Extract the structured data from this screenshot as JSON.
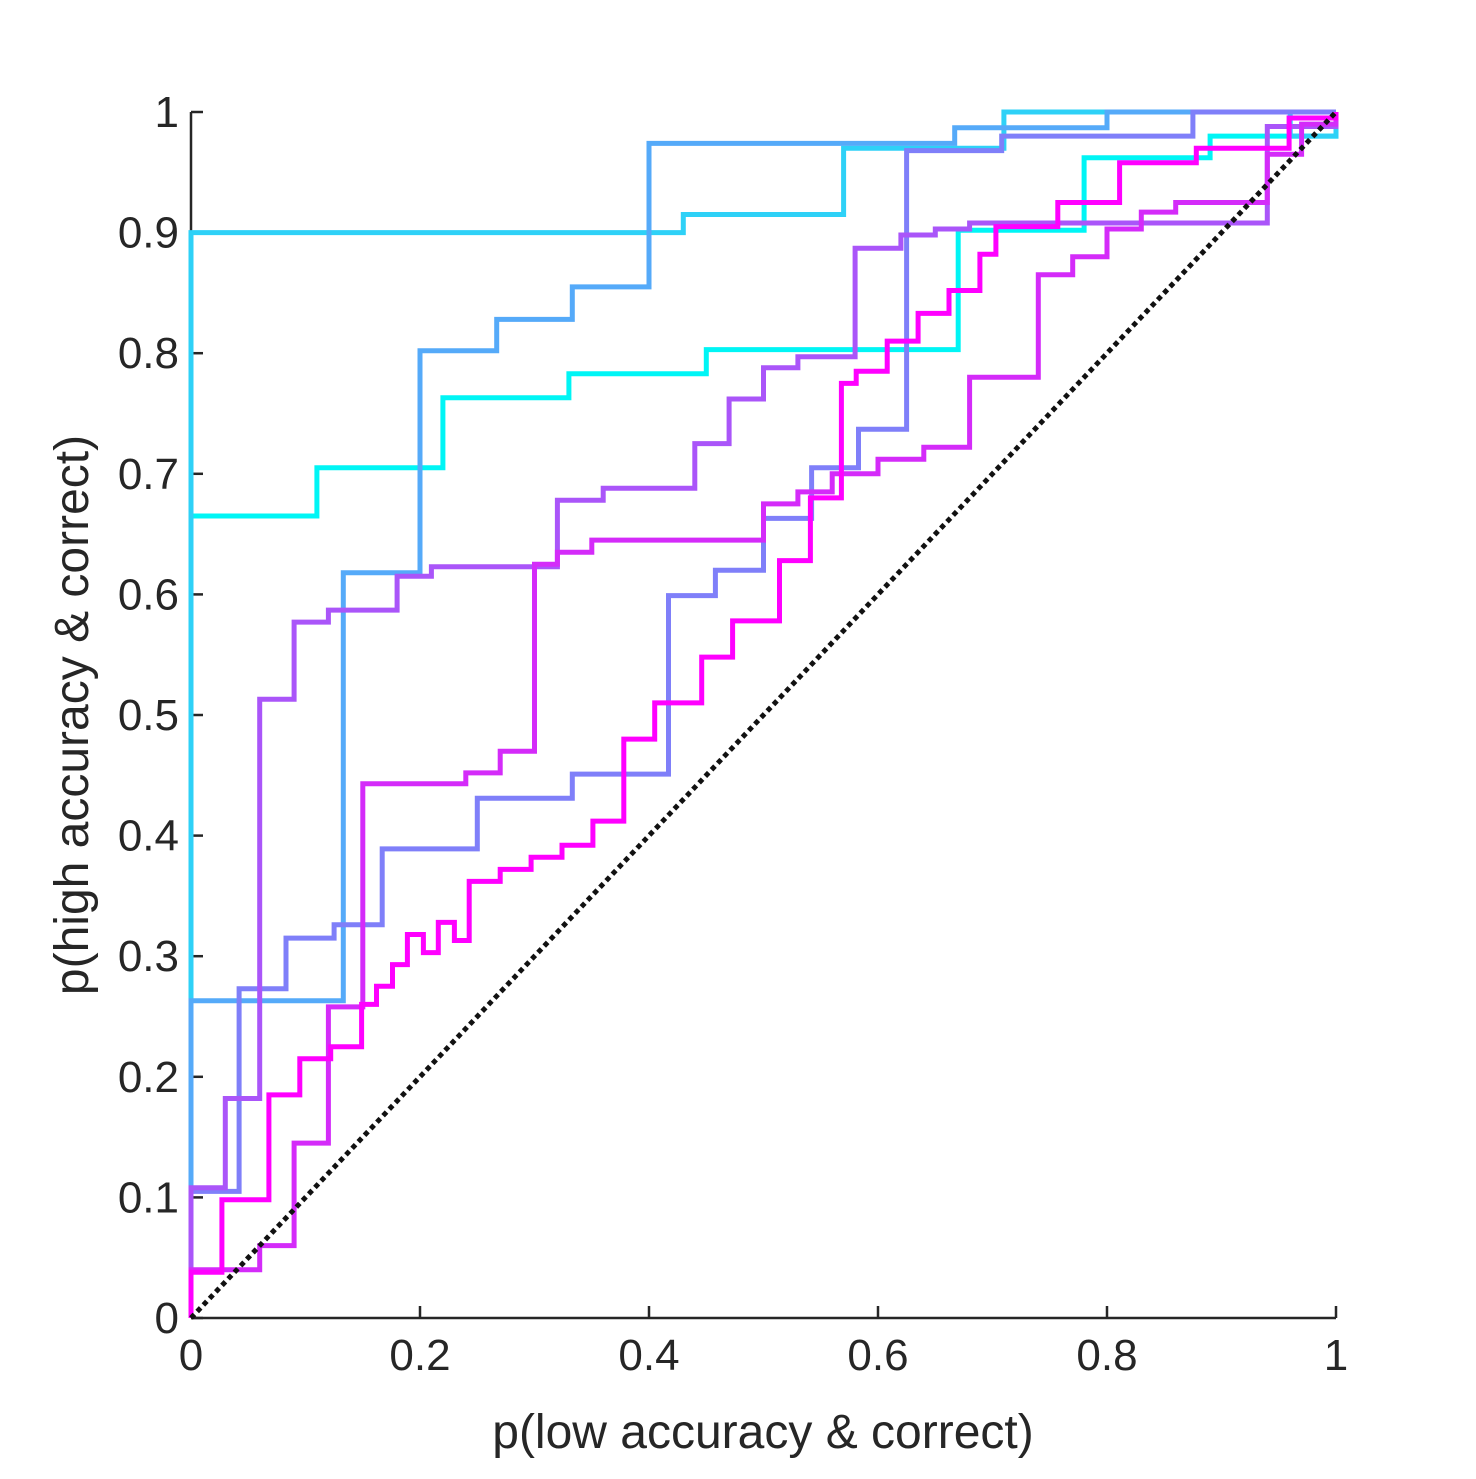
{
  "chart_data": {
    "type": "line",
    "title": "",
    "xlabel": "p(low accuracy & correct)",
    "ylabel": "p(high accuracy & correct)",
    "xlim": [
      0,
      1
    ],
    "ylim": [
      0,
      1
    ],
    "xticks": [
      "0",
      "0.2",
      "0.4",
      "0.6",
      "0.8",
      "1"
    ],
    "yticks": [
      "0",
      "0.1",
      "0.2",
      "0.3",
      "0.4",
      "0.5",
      "0.6",
      "0.7",
      "0.8",
      "0.9",
      "1"
    ],
    "grid": false,
    "legend": "none",
    "reference_line": {
      "style": "dotted",
      "color": "#111111",
      "x": [
        0,
        1
      ],
      "y": [
        0,
        1
      ]
    },
    "series": [
      {
        "color": "#00F5F5",
        "x": [
          0,
          0,
          0.11,
          0.11,
          0.22,
          0.22,
          0.33,
          0.33,
          0.45,
          0.45,
          0.67,
          0.67,
          0.78,
          0.78,
          0.89,
          0.89,
          1,
          1
        ],
        "y": [
          0,
          0.665,
          0.665,
          0.705,
          0.705,
          0.763,
          0.763,
          0.783,
          0.783,
          0.803,
          0.803,
          0.902,
          0.902,
          0.962,
          0.962,
          0.98,
          0.98,
          1
        ]
      },
      {
        "color": "#2ED1F7",
        "x": [
          0,
          0,
          0.43,
          0.43,
          0.57,
          0.57,
          0.71,
          0.71,
          0.96,
          0.96,
          1,
          1
        ],
        "y": [
          0,
          0.9,
          0.9,
          0.915,
          0.915,
          0.97,
          0.97,
          1,
          1,
          0.98,
          0.98,
          1
        ]
      },
      {
        "color": "#55AAF9",
        "x": [
          0,
          0,
          0.133,
          0.133,
          0.2,
          0.2,
          0.267,
          0.267,
          0.333,
          0.333,
          0.4,
          0.4,
          0.667,
          0.667,
          0.8,
          0.8,
          1,
          1
        ],
        "y": [
          0,
          0.263,
          0.263,
          0.618,
          0.618,
          0.802,
          0.802,
          0.828,
          0.828,
          0.855,
          0.855,
          0.974,
          0.974,
          0.987,
          0.987,
          1,
          1,
          1
        ]
      },
      {
        "color": "#7F7FF9",
        "x": [
          0,
          0,
          0.042,
          0.042,
          0.083,
          0.083,
          0.125,
          0.125,
          0.167,
          0.167,
          0.25,
          0.25,
          0.333,
          0.333,
          0.417,
          0.417,
          0.458,
          0.458,
          0.5,
          0.5,
          0.542,
          0.542,
          0.583,
          0.583,
          0.625,
          0.625,
          0.708,
          0.708,
          0.875,
          0.875,
          1,
          1
        ],
        "y": [
          0,
          0.105,
          0.105,
          0.273,
          0.273,
          0.315,
          0.315,
          0.326,
          0.326,
          0.389,
          0.389,
          0.431,
          0.431,
          0.451,
          0.451,
          0.599,
          0.599,
          0.62,
          0.62,
          0.663,
          0.663,
          0.705,
          0.705,
          0.737,
          0.737,
          0.968,
          0.968,
          0.98,
          0.98,
          1,
          1,
          1
        ]
      },
      {
        "color": "#AA55F9",
        "x": [
          0,
          0,
          0.03,
          0.03,
          0.06,
          0.06,
          0.09,
          0.09,
          0.12,
          0.12,
          0.18,
          0.18,
          0.21,
          0.21,
          0.32,
          0.32,
          0.36,
          0.36,
          0.44,
          0.44,
          0.47,
          0.47,
          0.5,
          0.5,
          0.53,
          0.53,
          0.58,
          0.58,
          0.62,
          0.62,
          0.65,
          0.65,
          0.68,
          0.68,
          0.94,
          0.94,
          1,
          1
        ],
        "y": [
          0,
          0.108,
          0.108,
          0.182,
          0.182,
          0.513,
          0.513,
          0.577,
          0.577,
          0.587,
          0.587,
          0.615,
          0.615,
          0.623,
          0.623,
          0.678,
          0.678,
          0.688,
          0.688,
          0.725,
          0.725,
          0.762,
          0.762,
          0.788,
          0.788,
          0.797,
          0.797,
          0.887,
          0.887,
          0.898,
          0.898,
          0.903,
          0.903,
          0.908,
          0.908,
          0.988,
          0.988,
          1
        ]
      },
      {
        "color": "#D42BF9",
        "x": [
          0,
          0,
          0.06,
          0.06,
          0.09,
          0.09,
          0.12,
          0.12,
          0.15,
          0.15,
          0.24,
          0.24,
          0.27,
          0.27,
          0.3,
          0.3,
          0.32,
          0.32,
          0.35,
          0.35,
          0.5,
          0.5,
          0.53,
          0.53,
          0.56,
          0.56,
          0.6,
          0.6,
          0.64,
          0.64,
          0.68,
          0.68,
          0.74,
          0.74,
          0.77,
          0.77,
          0.8,
          0.8,
          0.83,
          0.83,
          0.86,
          0.86,
          0.94,
          0.94,
          0.97,
          0.97,
          1,
          1
        ],
        "y": [
          0,
          0.04,
          0.04,
          0.06,
          0.06,
          0.145,
          0.145,
          0.258,
          0.258,
          0.443,
          0.443,
          0.452,
          0.452,
          0.47,
          0.47,
          0.625,
          0.625,
          0.635,
          0.635,
          0.645,
          0.645,
          0.675,
          0.675,
          0.685,
          0.685,
          0.7,
          0.7,
          0.712,
          0.712,
          0.722,
          0.722,
          0.78,
          0.78,
          0.865,
          0.865,
          0.88,
          0.88,
          0.903,
          0.903,
          0.917,
          0.917,
          0.925,
          0.925,
          0.965,
          0.965,
          0.99,
          0.99,
          1
        ]
      },
      {
        "color": "#FF00FF",
        "x": [
          0,
          0,
          0.027,
          0.027,
          0.068,
          0.068,
          0.095,
          0.095,
          0.122,
          0.122,
          0.149,
          0.149,
          0.162,
          0.162,
          0.176,
          0.176,
          0.189,
          0.189,
          0.203,
          0.203,
          0.216,
          0.216,
          0.23,
          0.23,
          0.243,
          0.243,
          0.27,
          0.27,
          0.297,
          0.297,
          0.324,
          0.324,
          0.351,
          0.351,
          0.378,
          0.378,
          0.405,
          0.405,
          0.446,
          0.446,
          0.473,
          0.473,
          0.514,
          0.514,
          0.541,
          0.541,
          0.568,
          0.568,
          0.581,
          0.581,
          0.608,
          0.608,
          0.635,
          0.635,
          0.662,
          0.662,
          0.689,
          0.689,
          0.703,
          0.703,
          0.757,
          0.757,
          0.811,
          0.811,
          0.878,
          0.878,
          0.959,
          0.959,
          1,
          1
        ],
        "y": [
          0,
          0.038,
          0.038,
          0.098,
          0.098,
          0.185,
          0.185,
          0.215,
          0.215,
          0.225,
          0.225,
          0.26,
          0.26,
          0.275,
          0.275,
          0.293,
          0.293,
          0.318,
          0.318,
          0.303,
          0.303,
          0.328,
          0.328,
          0.313,
          0.313,
          0.362,
          0.362,
          0.372,
          0.372,
          0.382,
          0.382,
          0.392,
          0.392,
          0.412,
          0.412,
          0.48,
          0.48,
          0.51,
          0.51,
          0.548,
          0.548,
          0.578,
          0.578,
          0.628,
          0.628,
          0.68,
          0.68,
          0.775,
          0.775,
          0.785,
          0.785,
          0.81,
          0.81,
          0.833,
          0.833,
          0.852,
          0.852,
          0.882,
          0.882,
          0.905,
          0.905,
          0.925,
          0.925,
          0.958,
          0.958,
          0.97,
          0.97,
          0.995,
          0.995,
          1
        ]
      }
    ]
  }
}
